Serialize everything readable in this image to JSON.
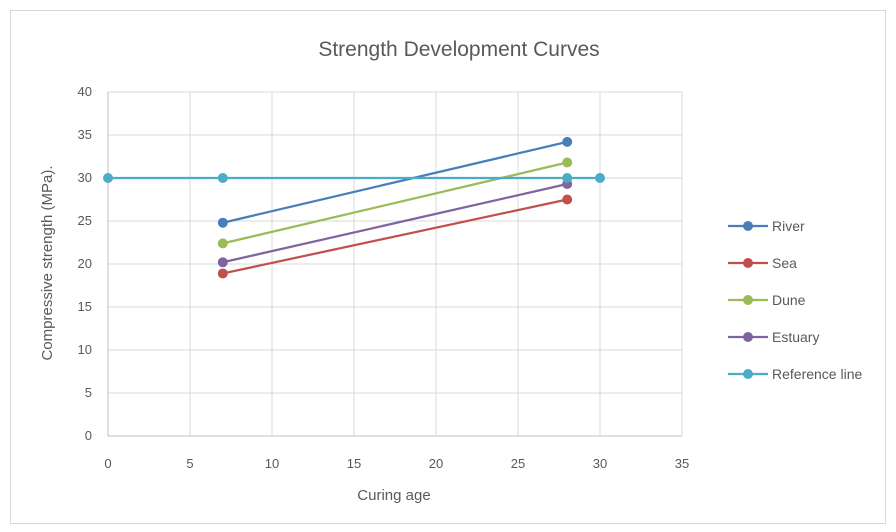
{
  "chart_data": {
    "type": "line",
    "title": "Strength Development Curves",
    "xlabel": "Curing age",
    "ylabel": "Compressive strength (MPa).",
    "xlim": [
      0,
      35
    ],
    "ylim": [
      0,
      40
    ],
    "xticks": [
      0,
      5,
      10,
      15,
      20,
      25,
      30,
      35
    ],
    "yticks": [
      0,
      5,
      10,
      15,
      20,
      25,
      30,
      35,
      40
    ],
    "grid": true,
    "legend_position": "right",
    "series": [
      {
        "name": "River",
        "color": "#4a7ebb",
        "points": [
          [
            7,
            24.8
          ],
          [
            28,
            34.2
          ]
        ]
      },
      {
        "name": "Sea",
        "color": "#c0504d",
        "points": [
          [
            7,
            18.9
          ],
          [
            28,
            27.5
          ]
        ]
      },
      {
        "name": "Dune",
        "color": "#9bbb59",
        "points": [
          [
            7,
            22.4
          ],
          [
            28,
            31.8
          ]
        ]
      },
      {
        "name": "Estuary",
        "color": "#8064a2",
        "points": [
          [
            7,
            20.2
          ],
          [
            28,
            29.3
          ]
        ]
      },
      {
        "name": "Reference line",
        "color": "#4bacc6",
        "points": [
          [
            0,
            30
          ],
          [
            7,
            30
          ],
          [
            28,
            30
          ],
          [
            30,
            30
          ]
        ]
      }
    ]
  }
}
